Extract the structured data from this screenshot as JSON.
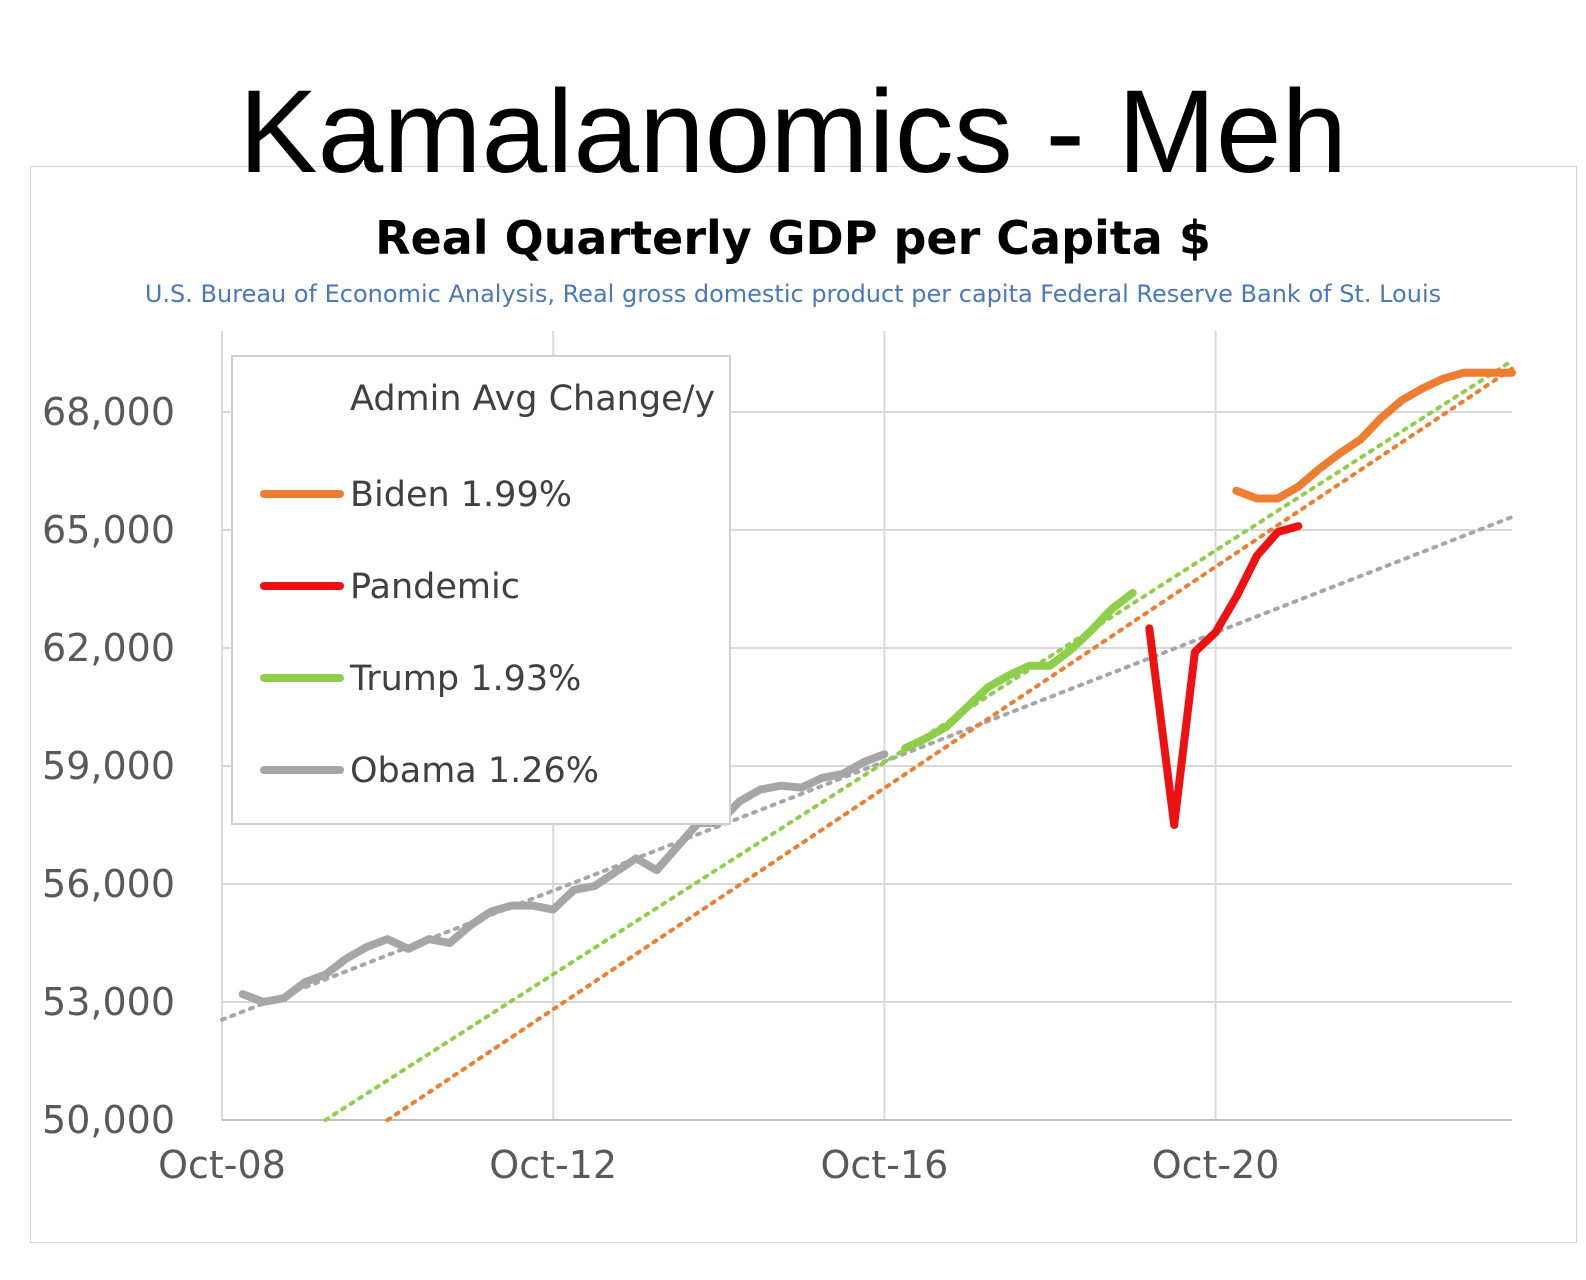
{
  "slide": {
    "title": "Kamalanomics - Meh"
  },
  "chart_data": {
    "type": "line",
    "title": "Real Quarterly GDP per Capita $",
    "subtitle": "U.S. Bureau of Economic Analysis, Real gross domestic product per capita Federal Reserve Bank of St. Louis",
    "xlabel": "",
    "ylabel": "",
    "x_ticks": [
      "Oct-08",
      "Oct-12",
      "Oct-16",
      "Oct-20"
    ],
    "y_ticks": [
      50000,
      53000,
      56000,
      59000,
      62000,
      65000,
      68000
    ],
    "y_tick_labels": [
      "50,000",
      "53,000",
      "56,000",
      "59,000",
      "62,000",
      "65,000",
      "68,000"
    ],
    "ylim": [
      50000,
      70000
    ],
    "xlim": [
      2008.75,
      2024.33
    ],
    "grid": true,
    "legend": {
      "title": "Admin Avg Change/y",
      "placement": "top-left",
      "entries": [
        {
          "label": "Biden 1.99%",
          "color": "#ed7d31"
        },
        {
          "label": "Pandemic",
          "color": "#ee1111"
        },
        {
          "label": "Trump 1.93%",
          "color": "#8fce4a"
        },
        {
          "label": "Obama 1.26%",
          "color": "#a6a6a6"
        }
      ]
    },
    "series": [
      {
        "name": "Obama 1.26%",
        "color": "#a6a6a6",
        "x": [
          2009.0,
          2009.25,
          2009.5,
          2009.75,
          2010.0,
          2010.25,
          2010.5,
          2010.75,
          2011.0,
          2011.25,
          2011.5,
          2011.75,
          2012.0,
          2012.25,
          2012.5,
          2012.75,
          2013.0,
          2013.25,
          2013.5,
          2013.75,
          2014.0,
          2014.25,
          2014.5,
          2014.75,
          2015.0,
          2015.25,
          2015.5,
          2015.75,
          2016.0,
          2016.25,
          2016.5,
          2016.75
        ],
        "y": [
          53200,
          53000,
          53100,
          53500,
          53700,
          54100,
          54400,
          54600,
          54350,
          54600,
          54500,
          54950,
          55300,
          55450,
          55450,
          55350,
          55850,
          55950,
          56300,
          56650,
          56350,
          56950,
          57550,
          57550,
          58100,
          58400,
          58500,
          58450,
          58700,
          58800,
          59100,
          59300
        ]
      },
      {
        "name": "Trump 1.93%",
        "color": "#8fce4a",
        "x": [
          2017.0,
          2017.25,
          2017.5,
          2017.75,
          2018.0,
          2018.25,
          2018.5,
          2018.75,
          2019.0,
          2019.25,
          2019.5,
          2019.75
        ],
        "y": [
          59450,
          59700,
          60000,
          60500,
          61000,
          61300,
          61550,
          61550,
          61950,
          62450,
          63000,
          63400
        ]
      },
      {
        "name": "Pandemic",
        "color": "#ee1111",
        "x": [
          2019.95,
          2020.25,
          2020.5,
          2020.75,
          2021.0,
          2021.25,
          2021.5,
          2021.75
        ],
        "y": [
          62500,
          57500,
          61900,
          62400,
          63300,
          64350,
          64950,
          65100
        ]
      },
      {
        "name": "Biden 1.99%",
        "color": "#ed7d31",
        "x": [
          2021.0,
          2021.25,
          2021.5,
          2021.75,
          2022.0,
          2022.25,
          2022.5,
          2022.75,
          2023.0,
          2023.25,
          2023.5,
          2023.75,
          2024.0,
          2024.33
        ],
        "y": [
          66000,
          65800,
          65800,
          66100,
          66550,
          66950,
          67300,
          67850,
          68300,
          68600,
          68850,
          69000,
          69000,
          69000
        ]
      }
    ],
    "trendlines": [
      {
        "of": "Obama 1.26%",
        "color": "#a6a6a6",
        "x": [
          2008.75,
          2024.33
        ],
        "y": [
          52550,
          65330
        ]
      },
      {
        "of": "Trump 1.93%",
        "color": "#8fce4a",
        "x": [
          2010.0,
          2024.33
        ],
        "y": [
          50000,
          69300
        ]
      },
      {
        "of": "Biden 1.99%",
        "color": "#ed7d31",
        "x": [
          2010.75,
          2024.33
        ],
        "y": [
          50000,
          69100
        ]
      }
    ]
  }
}
